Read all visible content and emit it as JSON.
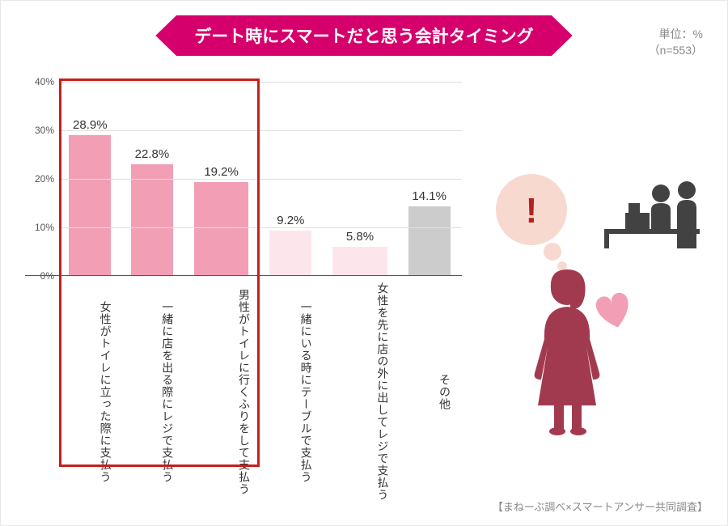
{
  "title": "デート時にスマートだと思う会計タイミング",
  "unit_line1": "単位：%",
  "unit_line2": "（n=553）",
  "source": "【まねーぶ調べ×スマートアンサー共同調査】",
  "chart": {
    "type": "bar",
    "ymax": 40,
    "ytick_step": 10,
    "ytick_suffix": "%",
    "grid_color": "#e0e0e0",
    "axis_color": "#555555",
    "highlight_border_color": "#c4201f",
    "background": "#ffffff",
    "bars": [
      {
        "label_lines": [
          "女性がトイレに",
          "立った際に支払う"
        ],
        "value": 28.9,
        "display": "28.9%",
        "fill": "#f29fb5",
        "highlighted": true
      },
      {
        "label_lines": [
          "一緒に店を出る際に",
          "レジで支払う"
        ],
        "value": 22.8,
        "display": "22.8%",
        "fill": "#f29fb5",
        "highlighted": true
      },
      {
        "label_lines": [
          "男性がトイレに",
          "行くふりをして支払う"
        ],
        "value": 19.2,
        "display": "19.2%",
        "fill": "#f29fb5",
        "highlighted": true,
        "wide": true
      },
      {
        "label_lines": [
          "一緒にいる時に",
          "テーブルで支払う"
        ],
        "value": 9.2,
        "display": "9.2%",
        "fill": "#fce6ec",
        "highlighted": false
      },
      {
        "label_lines": [
          "女性を先に店の外に",
          "出してレジで支払う"
        ],
        "value": 5.8,
        "display": "5.8%",
        "fill": "#fce6ec",
        "highlighted": false,
        "wide": true
      },
      {
        "label_lines": [
          "その他"
        ],
        "value": 14.1,
        "display": "14.1%",
        "fill": "#cccccc",
        "highlighted": false
      }
    ]
  },
  "illustration": {
    "woman_color": "#a23a4f",
    "heart_color": "#f29fb5",
    "bubble_fill": "#f8d9d0",
    "bubble_mark": "!",
    "bubble_mark_color": "#b52020",
    "cashier_color": "#424242",
    "counter_color": "#424242"
  }
}
